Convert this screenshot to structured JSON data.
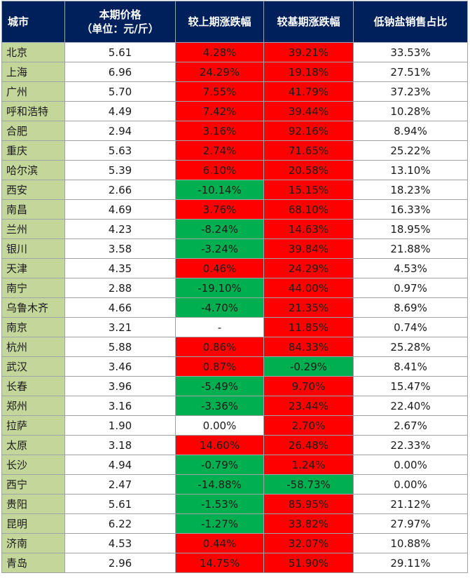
{
  "headers": {
    "city": "城市",
    "price_line1": "本期价格",
    "price_line2": "（单位：元/斤）",
    "change": "较上期涨跌幅",
    "yoy": "较基期涨跌幅",
    "low_sodium": "低钠盐销售占比"
  },
  "colors": {
    "header_bg": "#00205c",
    "city_bg": "#c4d79b",
    "up": "#ff0000",
    "down": "#00b050"
  },
  "rows": [
    {
      "city": "北京",
      "price": "5.61",
      "change": "4.28%",
      "change_color": "red",
      "yoy": "39.21%",
      "yoy_color": "red",
      "low": "33.53%"
    },
    {
      "city": "上海",
      "price": "6.96",
      "change": "24.29%",
      "change_color": "red",
      "yoy": "19.18%",
      "yoy_color": "red",
      "low": "27.51%"
    },
    {
      "city": "广州",
      "price": "5.70",
      "change": "7.55%",
      "change_color": "red",
      "yoy": "41.79%",
      "yoy_color": "red",
      "low": "37.23%"
    },
    {
      "city": "呼和浩特",
      "price": "4.49",
      "change": "7.42%",
      "change_color": "red",
      "yoy": "39.44%",
      "yoy_color": "red",
      "low": "10.28%"
    },
    {
      "city": "合肥",
      "price": "2.94",
      "change": "3.16%",
      "change_color": "red",
      "yoy": "92.16%",
      "yoy_color": "red",
      "low": "8.94%"
    },
    {
      "city": "重庆",
      "price": "5.63",
      "change": "2.74%",
      "change_color": "red",
      "yoy": "71.65%",
      "yoy_color": "red",
      "low": "25.22%"
    },
    {
      "city": "哈尔滨",
      "price": "5.39",
      "change": "6.10%",
      "change_color": "red",
      "yoy": "20.58%",
      "yoy_color": "red",
      "low": "13.10%"
    },
    {
      "city": "西安",
      "price": "2.66",
      "change": "-10.14%",
      "change_color": "green",
      "yoy": "15.15%",
      "yoy_color": "red",
      "low": "18.23%"
    },
    {
      "city": "南昌",
      "price": "4.69",
      "change": "3.76%",
      "change_color": "red",
      "yoy": "68.10%",
      "yoy_color": "red",
      "low": "16.33%"
    },
    {
      "city": "兰州",
      "price": "4.23",
      "change": "-8.24%",
      "change_color": "green",
      "yoy": "14.63%",
      "yoy_color": "red",
      "low": "18.95%"
    },
    {
      "city": "银川",
      "price": "3.58",
      "change": "-3.24%",
      "change_color": "green",
      "yoy": "39.84%",
      "yoy_color": "red",
      "low": "21.88%"
    },
    {
      "city": "天津",
      "price": "4.35",
      "change": "0.46%",
      "change_color": "red",
      "yoy": "24.29%",
      "yoy_color": "red",
      "low": "4.53%"
    },
    {
      "city": "南宁",
      "price": "2.88",
      "change": "-19.10%",
      "change_color": "green",
      "yoy": "44.00%",
      "yoy_color": "red",
      "low": "0.97%"
    },
    {
      "city": "乌鲁木齐",
      "price": "4.66",
      "change": "-4.70%",
      "change_color": "green",
      "yoy": "21.35%",
      "yoy_color": "red",
      "low": "8.69%"
    },
    {
      "city": "南京",
      "price": "3.21",
      "change": "-",
      "change_color": "white",
      "yoy": "11.85%",
      "yoy_color": "red",
      "low": "0.74%"
    },
    {
      "city": "杭州",
      "price": "5.88",
      "change": "0.86%",
      "change_color": "red",
      "yoy": "84.33%",
      "yoy_color": "red",
      "low": "25.28%"
    },
    {
      "city": "武汉",
      "price": "3.46",
      "change": "0.87%",
      "change_color": "red",
      "yoy": "-0.29%",
      "yoy_color": "green",
      "low": "8.41%"
    },
    {
      "city": "长春",
      "price": "3.96",
      "change": "-5.49%",
      "change_color": "green",
      "yoy": "9.70%",
      "yoy_color": "red",
      "low": "15.47%"
    },
    {
      "city": "郑州",
      "price": "3.16",
      "change": "-3.36%",
      "change_color": "green",
      "yoy": "23.44%",
      "yoy_color": "red",
      "low": "22.40%"
    },
    {
      "city": "拉萨",
      "price": "1.90",
      "change": "0.00%",
      "change_color": "white",
      "yoy": "2.70%",
      "yoy_color": "red",
      "low": "2.67%"
    },
    {
      "city": "太原",
      "price": "3.18",
      "change": "14.60%",
      "change_color": "red",
      "yoy": "26.48%",
      "yoy_color": "red",
      "low": "22.33%"
    },
    {
      "city": "长沙",
      "price": "4.94",
      "change": "-0.79%",
      "change_color": "green",
      "yoy": "1.24%",
      "yoy_color": "red",
      "low": "0.00%"
    },
    {
      "city": "西宁",
      "price": "2.47",
      "change": "-14.88%",
      "change_color": "green",
      "yoy": "-58.73%",
      "yoy_color": "green",
      "low": "0.00%"
    },
    {
      "city": "贵阳",
      "price": "5.61",
      "change": "-1.53%",
      "change_color": "green",
      "yoy": "85.95%",
      "yoy_color": "red",
      "low": "21.12%"
    },
    {
      "city": "昆明",
      "price": "6.22",
      "change": "-1.27%",
      "change_color": "green",
      "yoy": "33.82%",
      "yoy_color": "red",
      "low": "27.97%"
    },
    {
      "city": "济南",
      "price": "4.53",
      "change": "0.44%",
      "change_color": "red",
      "yoy": "32.07%",
      "yoy_color": "red",
      "low": "10.88%"
    },
    {
      "city": "青岛",
      "price": "2.96",
      "change": "14.75%",
      "change_color": "red",
      "yoy": "51.90%",
      "yoy_color": "red",
      "low": "29.11%"
    }
  ]
}
